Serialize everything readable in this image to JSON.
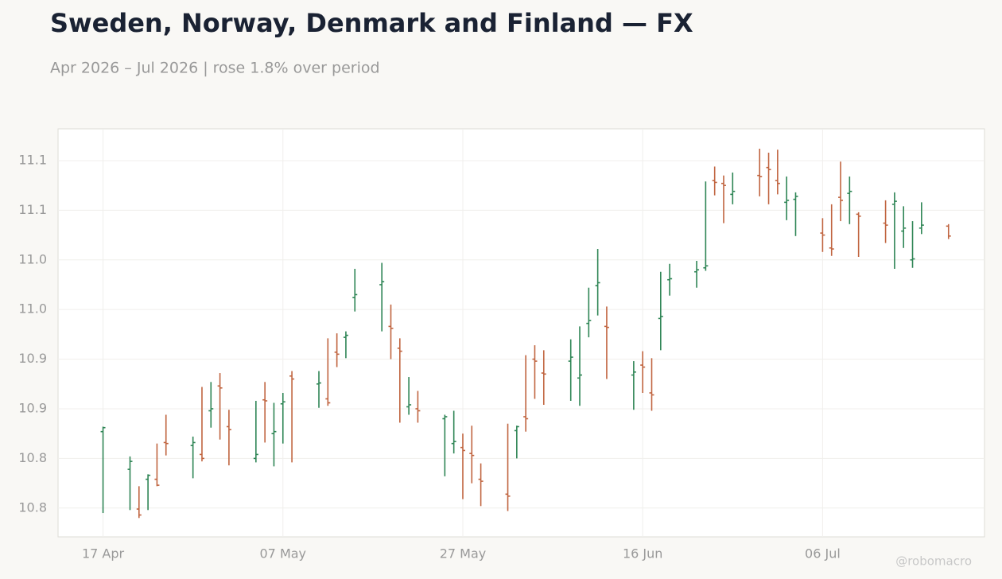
{
  "chart_data": {
    "type": "ohlc",
    "title": "Sweden, Norway, Denmark and Finland — FX",
    "subtitle": "Apr 2026 – Jul 2026 | rose 1.8% over period",
    "watermark": "@robomacro",
    "up_color": "#2e8555",
    "down_color": "#c0643f",
    "grid": true,
    "x": [
      "2026-04-17",
      "2026-04-20",
      "2026-04-21",
      "2026-04-22",
      "2026-04-23",
      "2026-04-24",
      "2026-04-27",
      "2026-04-28",
      "2026-04-29",
      "2026-04-30",
      "2026-05-01",
      "2026-05-04",
      "2026-05-05",
      "2026-05-06",
      "2026-05-07",
      "2026-05-08",
      "2026-05-11",
      "2026-05-12",
      "2026-05-13",
      "2026-05-14",
      "2026-05-15",
      "2026-05-18",
      "2026-05-19",
      "2026-05-20",
      "2026-05-21",
      "2026-05-22",
      "2026-05-25",
      "2026-05-26",
      "2026-05-27",
      "2026-05-28",
      "2026-05-29",
      "2026-06-01",
      "2026-06-02",
      "2026-06-03",
      "2026-06-04",
      "2026-06-05",
      "2026-06-08",
      "2026-06-09",
      "2026-06-10",
      "2026-06-11",
      "2026-06-12",
      "2026-06-15",
      "2026-06-16",
      "2026-06-17",
      "2026-06-18",
      "2026-06-19",
      "2026-06-22",
      "2026-06-23",
      "2026-06-24",
      "2026-06-25",
      "2026-06-26",
      "2026-06-29",
      "2026-06-30",
      "2026-07-01",
      "2026-07-02",
      "2026-07-03",
      "2026-07-06",
      "2026-07-07",
      "2026-07-08",
      "2026-07-09",
      "2026-07-10",
      "2026-07-13",
      "2026-07-14",
      "2026-07-15",
      "2026-07-16",
      "2026-07-17",
      "2026-07-20"
    ],
    "open": [
      10.852,
      10.814,
      10.774,
      10.804,
      10.804,
      10.841,
      10.838,
      10.829,
      10.873,
      10.898,
      10.857,
      10.825,
      10.884,
      10.85,
      10.88,
      10.908,
      10.9,
      10.885,
      10.932,
      10.947,
      10.987,
      11.0,
      10.958,
      10.936,
      10.877,
      10.875,
      10.865,
      10.84,
      10.836,
      10.83,
      10.804,
      10.789,
      10.853,
      10.867,
      10.925,
      10.911,
      10.923,
      10.906,
      10.961,
      10.999,
      10.958,
      10.909,
      10.919,
      10.891,
      10.966,
      11.005,
      11.013,
      11.017,
      11.105,
      11.102,
      11.091,
      11.11,
      11.118,
      11.105,
      11.083,
      11.086,
      11.052,
      11.037,
      11.088,
      11.092,
      11.071,
      11.062,
      11.081,
      11.054,
      11.025,
      11.057,
      11.059
    ],
    "high": [
      10.857,
      10.827,
      10.797,
      10.809,
      10.84,
      10.869,
      10.847,
      10.897,
      10.902,
      10.911,
      10.874,
      10.883,
      10.902,
      10.881,
      10.891,
      10.913,
      10.913,
      10.946,
      10.951,
      10.953,
      11.016,
      11.022,
      10.98,
      10.946,
      10.907,
      10.893,
      10.869,
      10.873,
      10.85,
      10.858,
      10.82,
      10.86,
      10.858,
      10.929,
      10.939,
      10.934,
      10.945,
      10.958,
      10.997,
      11.036,
      10.978,
      10.923,
      10.933,
      10.926,
      11.013,
      11.021,
      11.024,
      11.104,
      11.119,
      11.11,
      11.113,
      11.137,
      11.133,
      11.136,
      11.109,
      11.093,
      11.067,
      11.081,
      11.124,
      11.109,
      11.073,
      11.085,
      11.093,
      11.079,
      11.064,
      11.083,
      11.061
    ],
    "low": [
      10.77,
      10.773,
      10.765,
      10.773,
      10.797,
      10.828,
      10.805,
      10.822,
      10.856,
      10.844,
      10.818,
      10.821,
      10.841,
      10.817,
      10.84,
      10.821,
      10.876,
      10.878,
      10.917,
      10.926,
      10.973,
      10.953,
      10.925,
      10.861,
      10.869,
      10.861,
      10.807,
      10.83,
      10.784,
      10.8,
      10.777,
      10.772,
      10.825,
      10.852,
      10.885,
      10.879,
      10.883,
      10.878,
      10.947,
      10.969,
      10.905,
      10.874,
      10.891,
      10.873,
      10.934,
      10.989,
      10.997,
      11.014,
      11.09,
      11.062,
      11.081,
      11.089,
      11.081,
      11.091,
      11.065,
      11.049,
      11.033,
      11.029,
      11.064,
      11.061,
      11.028,
      11.042,
      11.016,
      11.037,
      11.017,
      11.051,
      11.046
    ],
    "close": [
      10.856,
      10.822,
      10.768,
      10.808,
      10.798,
      10.84,
      10.841,
      10.825,
      10.875,
      10.896,
      10.854,
      10.829,
      10.883,
      10.852,
      10.882,
      10.905,
      10.901,
      10.881,
      10.93,
      10.949,
      10.99,
      11.003,
      10.956,
      10.933,
      10.879,
      10.873,
      10.867,
      10.842,
      10.833,
      10.828,
      10.802,
      10.787,
      10.857,
      10.865,
      10.923,
      10.91,
      10.927,
      10.909,
      10.964,
      11.002,
      10.957,
      10.912,
      10.917,
      10.889,
      10.968,
      11.006,
      11.015,
      11.019,
      11.103,
      11.1,
      11.094,
      11.109,
      11.116,
      11.102,
      11.085,
      11.089,
      11.05,
      11.036,
      11.085,
      11.094,
      11.069,
      11.06,
      11.084,
      11.057,
      11.026,
      11.06,
      11.049
    ],
    "xlim": [
      "2026-04-12",
      "2026-07-24"
    ],
    "xticks": [
      {
        "value": "2026-04-17",
        "label": "17 Apr"
      },
      {
        "value": "2026-05-07",
        "label": "07 May"
      },
      {
        "value": "2026-05-27",
        "label": "27 May"
      },
      {
        "value": "2026-06-16",
        "label": "16 Jun"
      },
      {
        "value": "2026-07-06",
        "label": "06 Jul"
      }
    ],
    "ylim": [
      10.746,
      11.157
    ],
    "yticks": [
      {
        "value": 10.775,
        "label": "10.8"
      },
      {
        "value": 10.825,
        "label": "10.8"
      },
      {
        "value": 10.875,
        "label": "10.9"
      },
      {
        "value": 10.925,
        "label": "10.9"
      },
      {
        "value": 10.975,
        "label": "11.0"
      },
      {
        "value": 11.025,
        "label": "11.0"
      },
      {
        "value": 11.075,
        "label": "11.1"
      },
      {
        "value": 11.125,
        "label": "11.1"
      }
    ]
  }
}
